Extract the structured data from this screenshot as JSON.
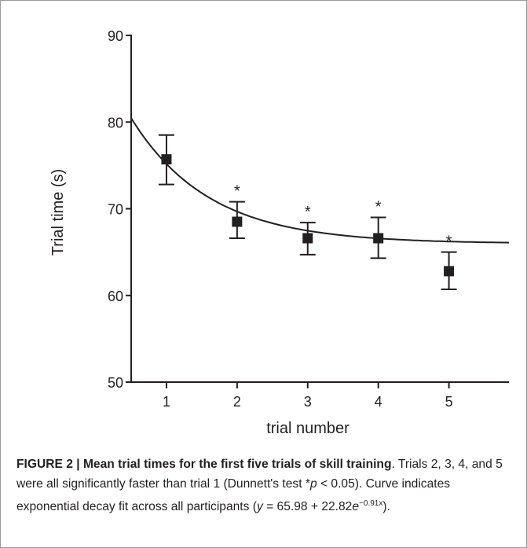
{
  "chart_data": {
    "type": "scatter",
    "xlabel": "trial number",
    "ylabel": "Trial time (s)",
    "xlim": [
      0.5,
      5.85
    ],
    "ylim": [
      50,
      90
    ],
    "x_ticks": [
      "1",
      "2",
      "3",
      "4",
      "5"
    ],
    "y_ticks": [
      "50",
      "60",
      "70",
      "80",
      "90"
    ],
    "grid": false,
    "points": [
      {
        "x": 1,
        "y": 75.7,
        "err_low": 72.8,
        "err_high": 78.5,
        "significant": false
      },
      {
        "x": 2,
        "y": 68.5,
        "err_low": 66.6,
        "err_high": 70.8,
        "significant": true
      },
      {
        "x": 3,
        "y": 66.6,
        "err_low": 64.7,
        "err_high": 68.4,
        "significant": true
      },
      {
        "x": 4,
        "y": 66.6,
        "err_low": 64.3,
        "err_high": 69.0,
        "significant": true
      },
      {
        "x": 5,
        "y": 62.8,
        "err_low": 60.7,
        "err_high": 65.0,
        "significant": true
      }
    ],
    "significance_marker": "*",
    "fit": {
      "intercept": 65.98,
      "amplitude": 22.82,
      "rate": 0.91
    }
  },
  "caption": {
    "label": "FIGURE 2 | Mean trial times for the first five trials of skill training",
    "text_1": ". Trials 2, 3, 4, and 5 were all significantly faster than trial 1 (Dunnett's test *",
    "p": "p",
    "text_2": " < 0.05). Curve indicates exponential decay fit across all participants (",
    "y": "y",
    "text_3": " = 65.98 + 22.82",
    "e": "e",
    "exponent": "−0.91x",
    "text_4": ")."
  }
}
